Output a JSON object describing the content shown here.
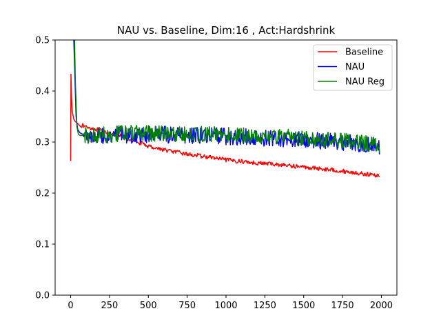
{
  "chart_data": {
    "type": "line",
    "title": "NAU vs. Baseline, Dim:16 , Act:Hardshrink",
    "xlabel": "",
    "ylabel": "",
    "xlim": [
      -100,
      2100
    ],
    "ylim": [
      0.0,
      0.5
    ],
    "xticks": [
      0,
      250,
      500,
      750,
      1000,
      1250,
      1500,
      1750,
      2000
    ],
    "xtick_labels": [
      "0",
      "250",
      "500",
      "750",
      "1000",
      "1250",
      "1500",
      "1750",
      "2000"
    ],
    "yticks": [
      0.0,
      0.1,
      0.2,
      0.3,
      0.4,
      0.5
    ],
    "ytick_labels": [
      "0.0",
      "0.1",
      "0.2",
      "0.3",
      "0.4",
      "0.5"
    ],
    "grid": false,
    "legend_position": "top-right",
    "series": [
      {
        "name": "Baseline",
        "color": "#ff0000",
        "x": [
          0,
          2,
          5,
          10,
          20,
          30,
          50,
          75,
          100,
          150,
          200,
          250,
          300,
          350,
          400,
          450,
          500,
          600,
          700,
          800,
          900,
          1000,
          1100,
          1200,
          1300,
          1400,
          1500,
          1600,
          1700,
          1800,
          1900,
          1990
        ],
        "values": [
          0.263,
          0.433,
          0.39,
          0.36,
          0.345,
          0.34,
          0.335,
          0.332,
          0.33,
          0.326,
          0.322,
          0.318,
          0.314,
          0.309,
          0.304,
          0.298,
          0.292,
          0.285,
          0.279,
          0.274,
          0.27,
          0.265,
          0.262,
          0.259,
          0.257,
          0.254,
          0.251,
          0.248,
          0.245,
          0.241,
          0.237,
          0.234
        ]
      },
      {
        "name": "NAU",
        "color": "#0000ff",
        "x": [
          20,
          25,
          35,
          45,
          60,
          80,
          100,
          150,
          200,
          250,
          300,
          350,
          400,
          500,
          600,
          700,
          800,
          900,
          1000,
          1100,
          1200,
          1300,
          1400,
          1500,
          1600,
          1700,
          1800,
          1900,
          1990
        ],
        "values": [
          0.5,
          0.45,
          0.35,
          0.325,
          0.318,
          0.315,
          0.313,
          0.312,
          0.312,
          0.313,
          0.313,
          0.314,
          0.314,
          0.314,
          0.314,
          0.313,
          0.313,
          0.312,
          0.311,
          0.31,
          0.309,
          0.308,
          0.306,
          0.305,
          0.303,
          0.301,
          0.299,
          0.296,
          0.29
        ]
      },
      {
        "name": "NAU Reg",
        "color": "#008000",
        "x": [
          25,
          30,
          40,
          50,
          60,
          80,
          100,
          150,
          200,
          250,
          300,
          350,
          400,
          500,
          600,
          700,
          800,
          900,
          1000,
          1100,
          1200,
          1300,
          1400,
          1500,
          1600,
          1700,
          1800,
          1900,
          1990
        ],
        "values": [
          0.5,
          0.42,
          0.33,
          0.315,
          0.313,
          0.313,
          0.313,
          0.313,
          0.314,
          0.315,
          0.316,
          0.316,
          0.317,
          0.317,
          0.317,
          0.316,
          0.316,
          0.315,
          0.314,
          0.313,
          0.312,
          0.311,
          0.309,
          0.307,
          0.305,
          0.303,
          0.3,
          0.297,
          0.293
        ]
      }
    ]
  }
}
